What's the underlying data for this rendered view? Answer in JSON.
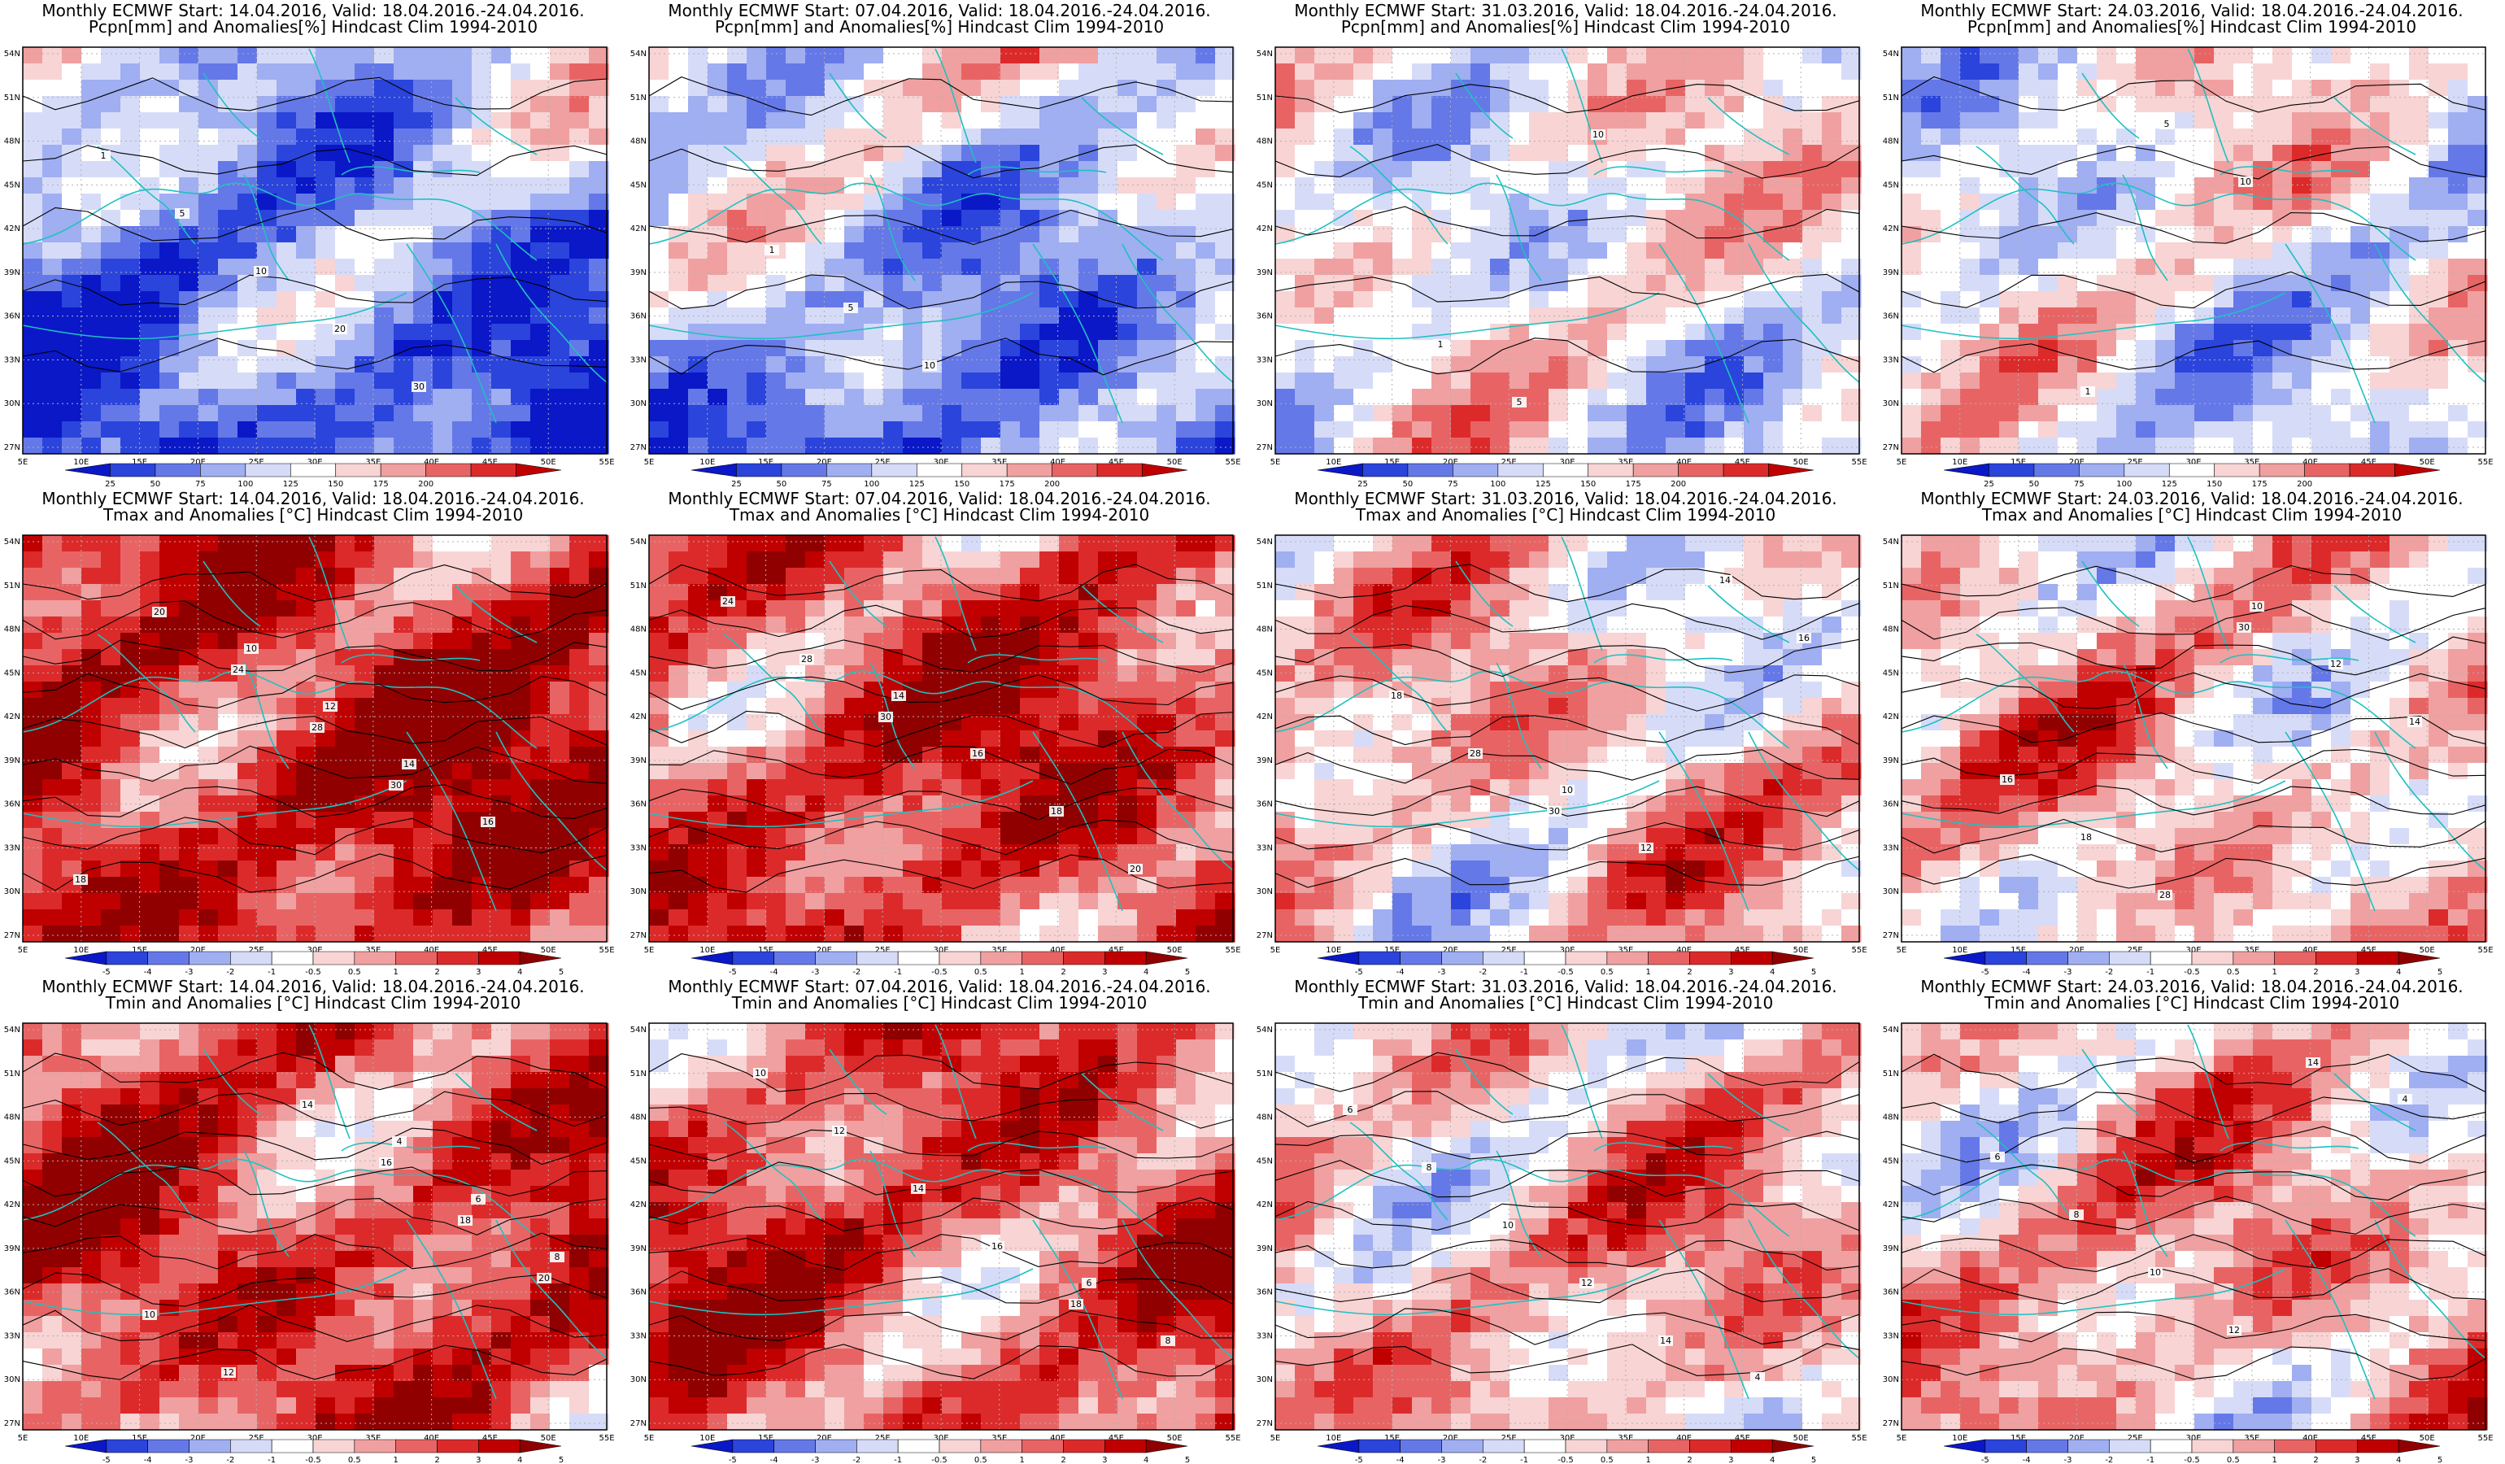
{
  "colors": {
    "coast": "#20c0c0",
    "contour": "#000000",
    "precip_scale": [
      "#0a18c8",
      "#2a44dc",
      "#6478e8",
      "#a0aef2",
      "#d6dcf8",
      "#ffffff",
      "#f8d4d4",
      "#f0a0a0",
      "#e86464",
      "#dc2a2a",
      "#c00000"
    ],
    "temp_scale": [
      "#0a18c8",
      "#2a44dc",
      "#6478e8",
      "#a0aef2",
      "#d6dcf8",
      "#ffffff",
      "#f8d4d4",
      "#f0a0a0",
      "#e86464",
      "#dc2a2a",
      "#c00000",
      "#900000"
    ]
  },
  "axes": {
    "lat_labels": [
      "54N",
      "51N",
      "48N",
      "45N",
      "42N",
      "39N",
      "36N",
      "33N",
      "30N",
      "27N"
    ],
    "lon_labels": [
      "5E",
      "10E",
      "15E",
      "20E",
      "25E",
      "30E",
      "35E",
      "40E",
      "45E",
      "50E",
      "55E"
    ]
  },
  "colorbars": {
    "precip": [
      "25",
      "50",
      "75",
      "100",
      "125",
      "150",
      "175",
      "200"
    ],
    "temp": [
      "-5",
      "-4",
      "-3",
      "-2",
      "-1",
      "-0.5",
      "0.5",
      "1",
      "2",
      "3",
      "4",
      "5"
    ]
  },
  "panels": [
    {
      "line1": "Monthly ECMWF Start: 14.04.2016, Valid: 18.04.2016.-24.04.2016.",
      "line2": "Pcpn[mm] and Anomalies[%] Hindcast Clim 1994-2010",
      "var": "precip",
      "bias": -0.55,
      "seed": 3,
      "contour_labels": [
        "1",
        "5",
        "10",
        "20",
        "30"
      ]
    },
    {
      "line1": "Monthly ECMWF Start: 07.04.2016, Valid: 18.04.2016.-24.04.2016.",
      "line2": "Pcpn[mm] and Anomalies[%] Hindcast Clim 1994-2010",
      "var": "precip",
      "bias": -0.35,
      "seed": 7,
      "contour_labels": [
        "1",
        "5",
        "10"
      ]
    },
    {
      "line1": "Monthly ECMWF Start: 31.03.2016, Valid: 18.04.2016.-24.04.2016.",
      "line2": "Pcpn[mm] and Anomalies[%] Hindcast Clim 1994-2010",
      "var": "precip",
      "bias": 0.0,
      "seed": 11,
      "contour_labels": [
        "1",
        "5",
        "10"
      ]
    },
    {
      "line1": "Monthly ECMWF Start: 24.03.2016, Valid: 18.04.2016.-24.04.2016.",
      "line2": "Pcpn[mm] and Anomalies[%] Hindcast Clim 1994-2010",
      "var": "precip",
      "bias": -0.05,
      "seed": 13,
      "contour_labels": [
        "1",
        "5",
        "10"
      ]
    },
    {
      "line1": "Monthly ECMWF Start: 14.04.2016, Valid: 18.04.2016.-24.04.2016.",
      "line2": "Tmax and Anomalies [°C] Hindcast Clim 1994-2010",
      "var": "temp",
      "bias": 0.65,
      "seed": 17,
      "contour_labels": [
        "10",
        "12",
        "14",
        "16",
        "18",
        "20",
        "24",
        "28",
        "30"
      ]
    },
    {
      "line1": "Monthly ECMWF Start: 07.04.2016, Valid: 18.04.2016.-24.04.2016.",
      "line2": "Tmax and Anomalies [°C] Hindcast Clim 1994-2010",
      "var": "temp",
      "bias": 0.5,
      "seed": 19,
      "contour_labels": [
        "14",
        "16",
        "18",
        "20",
        "24",
        "28",
        "30"
      ]
    },
    {
      "line1": "Monthly ECMWF Start: 31.03.2016, Valid: 18.04.2016.-24.04.2016.",
      "line2": "Tmax and Anomalies [°C] Hindcast Clim 1994-2010",
      "var": "temp",
      "bias": 0.05,
      "seed": 23,
      "contour_labels": [
        "10",
        "12",
        "14",
        "16",
        "18",
        "28",
        "30"
      ]
    },
    {
      "line1": "Monthly ECMWF Start: 24.03.2016, Valid: 18.04.2016.-24.04.2016.",
      "line2": "Tmax and Anomalies [°C] Hindcast Clim 1994-2010",
      "var": "temp",
      "bias": 0.05,
      "seed": 29,
      "contour_labels": [
        "10",
        "12",
        "14",
        "16",
        "18",
        "28",
        "30"
      ]
    },
    {
      "line1": "Monthly ECMWF Start: 14.04.2016, Valid: 18.04.2016.-24.04.2016.",
      "line2": "Tmin and Anomalies [°C] Hindcast Clim 1994-2010",
      "var": "temp",
      "bias": 0.5,
      "seed": 31,
      "contour_labels": [
        "4",
        "6",
        "8",
        "10",
        "12",
        "14",
        "16",
        "18",
        "20"
      ]
    },
    {
      "line1": "Monthly ECMWF Start: 07.04.2016, Valid: 18.04.2016.-24.04.2016.",
      "line2": "Tmin and Anomalies [°C] Hindcast Clim 1994-2010",
      "var": "temp",
      "bias": 0.45,
      "seed": 37,
      "contour_labels": [
        "6",
        "8",
        "10",
        "12",
        "14",
        "16",
        "18"
      ]
    },
    {
      "line1": "Monthly ECMWF Start: 31.03.2016, Valid: 18.04.2016.-24.04.2016.",
      "line2": "Tmin and Anomalies [°C] Hindcast Clim 1994-2010",
      "var": "temp",
      "bias": 0.1,
      "seed": 41,
      "contour_labels": [
        "4",
        "6",
        "8",
        "10",
        "12",
        "14"
      ]
    },
    {
      "line1": "Monthly ECMWF Start: 24.03.2016, Valid: 18.04.2016.-24.04.2016.",
      "line2": "Tmin and Anomalies [°C] Hindcast Clim 1994-2010",
      "var": "temp",
      "bias": 0.12,
      "seed": 43,
      "contour_labels": [
        "4",
        "6",
        "8",
        "10",
        "12",
        "14"
      ]
    }
  ]
}
